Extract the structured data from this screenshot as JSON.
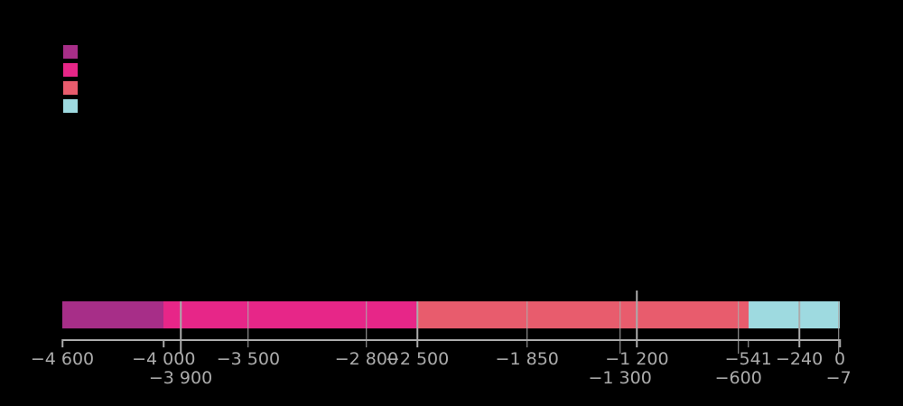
{
  "legend": {
    "items": [
      {
        "label": "",
        "color": "#A72E88"
      },
      {
        "label": "",
        "color": "#E72688"
      },
      {
        "label": "",
        "color": "#E85C6D"
      },
      {
        "label": "",
        "color": "#9EDAE0"
      }
    ]
  },
  "chart_data": {
    "type": "bar",
    "subtype": "horizontal-stacked-timeline",
    "x_range": [
      -4600,
      0
    ],
    "grid": false,
    "axis_color": "#ABABAB",
    "label_color": "#ABABAB",
    "segments": [
      {
        "from": -4600,
        "to": -4000,
        "color": "#A72E88"
      },
      {
        "from": -4000,
        "to": -2500,
        "color": "#E72688"
      },
      {
        "from": -2500,
        "to": -541,
        "color": "#E85C6D"
      },
      {
        "from": -541,
        "to": 0,
        "color": "#9EDAE0"
      }
    ],
    "ticks": [
      {
        "value": -4600,
        "label": "−4 600",
        "row": 1,
        "line": "tick"
      },
      {
        "value": -4000,
        "label": "−4 000",
        "row": 1,
        "line": "tick"
      },
      {
        "value": -3900,
        "label": "−3 900",
        "row": 2,
        "line": "bar-long"
      },
      {
        "value": -3500,
        "label": "−3 500",
        "row": 1,
        "line": "bar"
      },
      {
        "value": -2800,
        "label": "−2 800",
        "row": 1,
        "line": "bar"
      },
      {
        "value": -2500,
        "label": "−2 500",
        "row": 1,
        "line": "bar"
      },
      {
        "value": -1850,
        "label": "−1 850",
        "row": 1,
        "line": "bar"
      },
      {
        "value": -1300,
        "label": "−1 300",
        "row": 2,
        "line": "bar-long"
      },
      {
        "value": -1200,
        "label": "−1 200",
        "row": 1,
        "line": "bar-above"
      },
      {
        "value": -600,
        "label": "−600",
        "row": 2,
        "line": "bar-long"
      },
      {
        "value": -541,
        "label": "−541",
        "row": 1,
        "line": "tick"
      },
      {
        "value": -240,
        "label": "−240",
        "row": 1,
        "line": "bar"
      },
      {
        "value": -7,
        "label": "−7",
        "row": 2,
        "line": "bar-long"
      },
      {
        "value": 0,
        "label": "0",
        "row": 1,
        "line": "tick"
      }
    ]
  }
}
